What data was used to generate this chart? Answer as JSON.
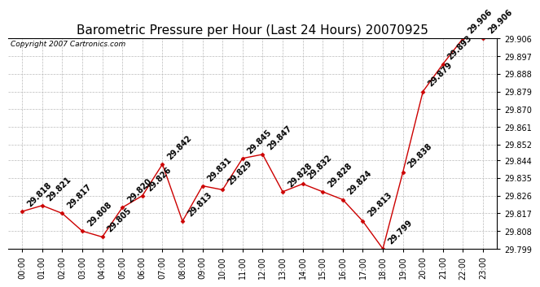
{
  "title": "Barometric Pressure per Hour (Last 24 Hours) 20070925",
  "copyright": "Copyright 2007 Cartronics.com",
  "hours": [
    "00:00",
    "01:00",
    "02:00",
    "03:00",
    "04:00",
    "05:00",
    "06:00",
    "07:00",
    "08:00",
    "09:00",
    "10:00",
    "11:00",
    "12:00",
    "13:00",
    "14:00",
    "15:00",
    "16:00",
    "17:00",
    "18:00",
    "19:00",
    "20:00",
    "21:00",
    "22:00",
    "23:00"
  ],
  "values": [
    29.818,
    29.821,
    29.817,
    29.808,
    29.805,
    29.82,
    29.826,
    29.842,
    29.813,
    29.831,
    29.829,
    29.845,
    29.847,
    29.828,
    29.832,
    29.828,
    29.824,
    29.813,
    29.799,
    29.838,
    29.879,
    29.893,
    29.906,
    29.906
  ],
  "ylim_min": 29.799,
  "ylim_max": 29.906,
  "yticks": [
    29.799,
    29.808,
    29.817,
    29.826,
    29.835,
    29.844,
    29.852,
    29.861,
    29.87,
    29.879,
    29.888,
    29.897,
    29.906
  ],
  "line_color": "#cc0000",
  "marker_color": "#cc0000",
  "bg_color": "#ffffff",
  "grid_color": "#bbbbbb",
  "title_fontsize": 11,
  "tick_fontsize": 7,
  "annotation_fontsize": 7,
  "copyright_fontsize": 6.5
}
